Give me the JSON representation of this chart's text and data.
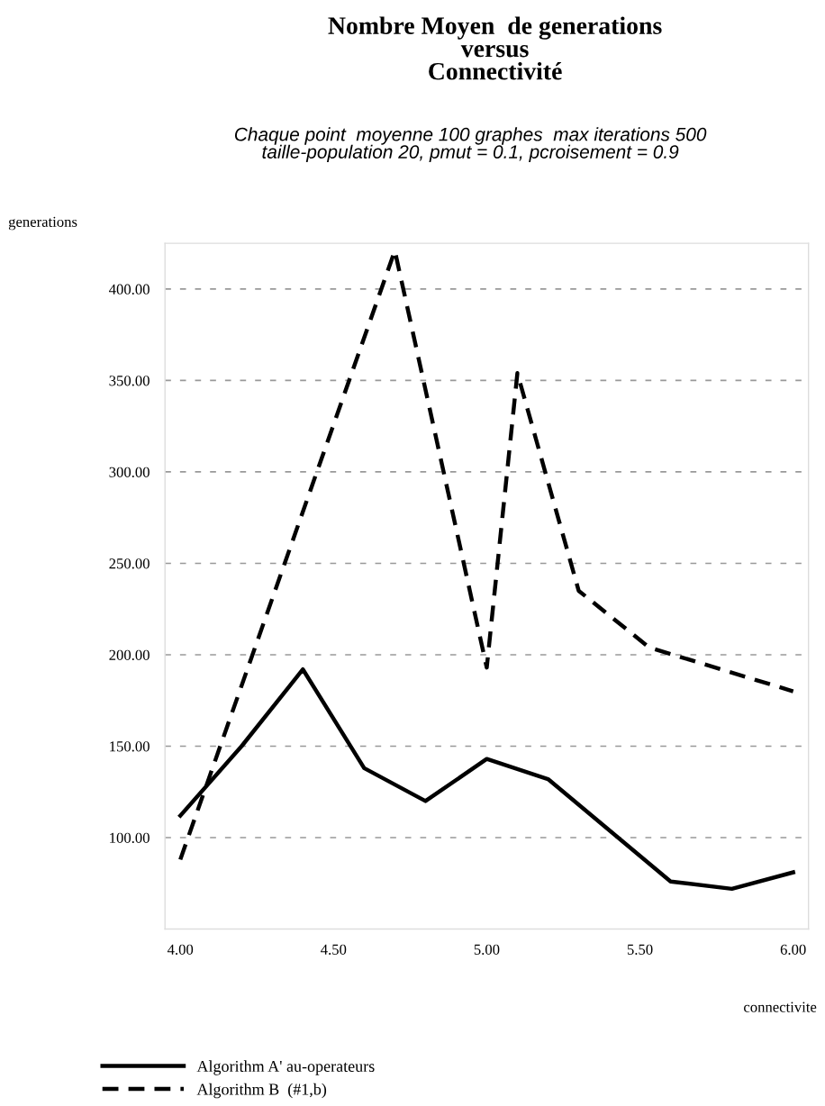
{
  "chart_data": {
    "type": "line",
    "title": "Nombre Moyen  de generations\nversus\nConnectivité",
    "subtitle": "Chaque point  moyenne 100 graphes  max iterations 500\ntaille-population 20, pmut = 0.1, pcroisement = 0.9",
    "xlabel": "connectivite",
    "ylabel": "generations",
    "series": [
      {
        "name": "Algorithm A' au-operateurs",
        "color": "#000000",
        "line_style": "solid",
        "x": [
          4.0,
          4.2,
          4.4,
          4.6,
          4.8,
          5.0,
          5.2,
          5.6,
          5.8,
          6.0
        ],
        "values": [
          112,
          150,
          192,
          138,
          120,
          143,
          132,
          76,
          72,
          81
        ]
      },
      {
        "name": "Algorithm B  (#1,b)",
        "color": "#000000",
        "line_style": "dashed",
        "x": [
          4.0,
          4.7,
          5.0,
          5.1,
          5.3,
          5.53,
          6.0
        ],
        "values": [
          88,
          421,
          193,
          354,
          235,
          204,
          180
        ]
      }
    ],
    "xlim": [
      3.95,
      6.05
    ],
    "ylim": [
      50,
      425
    ],
    "xticks": [
      {
        "value": 4,
        "label": "4.00"
      },
      {
        "value": 4.5,
        "label": "4.50"
      },
      {
        "value": 5,
        "label": "5.00"
      },
      {
        "value": 5.5,
        "label": "5.50"
      },
      {
        "value": 6,
        "label": "6.00"
      }
    ],
    "yticks": [
      {
        "value": 100,
        "label": "100.00"
      },
      {
        "value": 150,
        "label": "150.00"
      },
      {
        "value": 200,
        "label": "200.00"
      },
      {
        "value": 250,
        "label": "250.00"
      },
      {
        "value": 300,
        "label": "300.00"
      },
      {
        "value": 350,
        "label": "350.00"
      },
      {
        "value": 400,
        "label": "400.00"
      }
    ],
    "grid": "y",
    "legend": "bottom left",
    "marker": "none"
  }
}
